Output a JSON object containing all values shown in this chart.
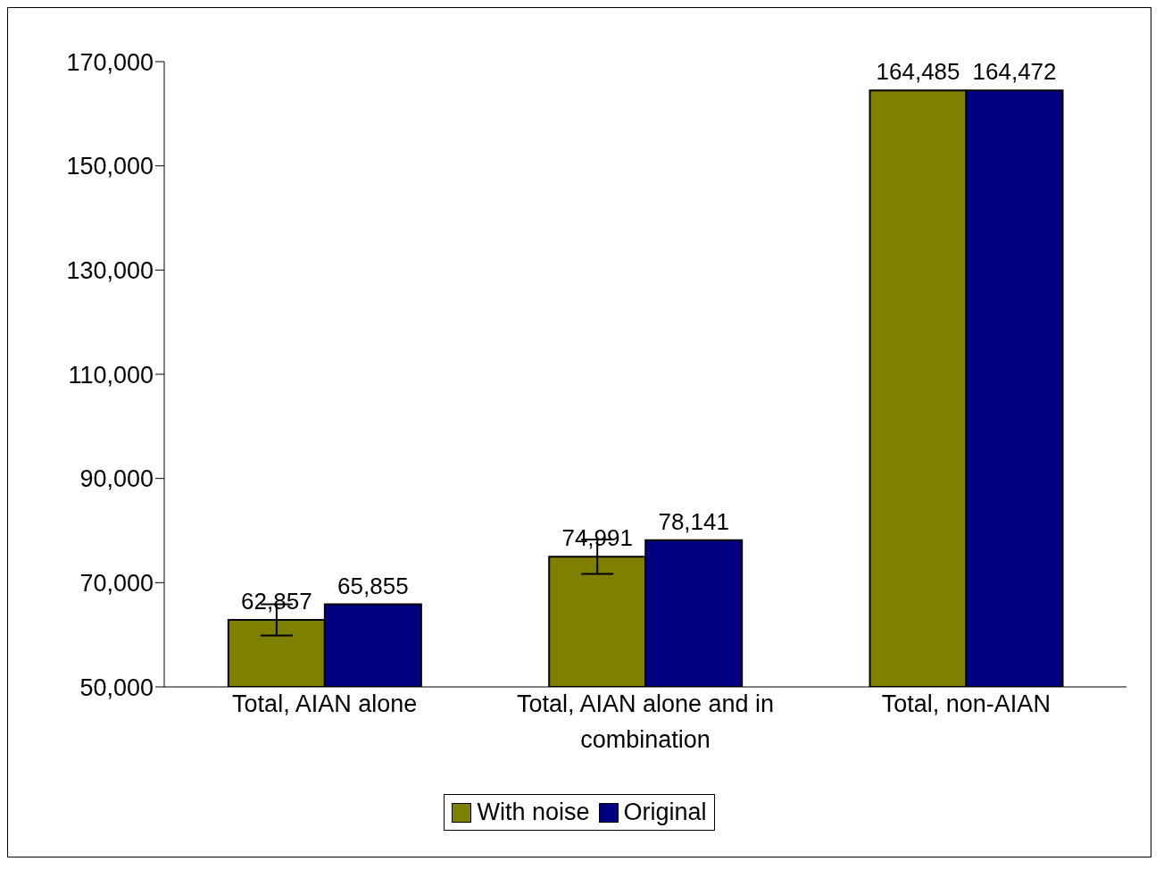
{
  "chart_data": {
    "type": "bar",
    "categories": [
      "Total, AIAN alone",
      "Total, AIAN alone and in combination",
      "Total, non-AIAN"
    ],
    "series": [
      {
        "name": "With noise",
        "color": "#808000",
        "values": [
          62857,
          74991,
          164485
        ],
        "value_labels": [
          "62,857",
          "74,991",
          "164,485"
        ],
        "errors": [
          3000,
          3300,
          null
        ]
      },
      {
        "name": "Original",
        "color": "#000080",
        "values": [
          65855,
          78141,
          164472
        ],
        "value_labels": [
          "65,855",
          "78,141",
          "164,472"
        ]
      }
    ],
    "ylim": [
      50000,
      170000
    ],
    "yticks": [
      {
        "value": 50000,
        "label": "50,000"
      },
      {
        "value": 70000,
        "label": "70,000"
      },
      {
        "value": 90000,
        "label": "90,000"
      },
      {
        "value": 110000,
        "label": "110,000"
      },
      {
        "value": 130000,
        "label": "130,000"
      },
      {
        "value": 150000,
        "label": "150,000"
      },
      {
        "value": 170000,
        "label": "170,000"
      }
    ],
    "grid": false,
    "legend": "bottom"
  }
}
